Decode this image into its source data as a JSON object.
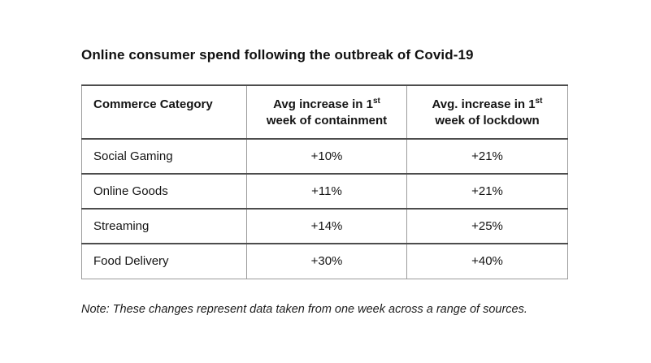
{
  "title": "Online consumer spend following the outbreak of Covid-19",
  "note": "Note: These changes represent data taken from one week across a range of sources.",
  "colors": {
    "text": "#1a1a1a",
    "rule_strong": "#4d4d4d",
    "rule_light": "#9b9b9b",
    "background": "#ffffff"
  },
  "chart_data": {
    "type": "table",
    "title": "Online consumer spend following the outbreak of Covid-19",
    "columns": [
      {
        "label": "Commerce Category"
      },
      {
        "label": "Avg increase in 1st week of containment",
        "pre": "Avg increase in 1",
        "sup": "st",
        "post": "week of containment"
      },
      {
        "label": "Avg. increase in 1st week of lockdown",
        "pre": "Avg. increase in 1",
        "sup": "st",
        "post": "week of lockdown"
      }
    ],
    "rows": [
      [
        "Social Gaming",
        "+10%",
        "+21%"
      ],
      [
        "Online Goods",
        "+11%",
        "+21%"
      ],
      [
        "Streaming",
        "+14%",
        "+25%"
      ],
      [
        "Food Delivery",
        "+30%",
        "+40%"
      ]
    ],
    "values_unit": "percent increase",
    "note": "Note: These changes represent data taken from one week across a range of sources."
  }
}
